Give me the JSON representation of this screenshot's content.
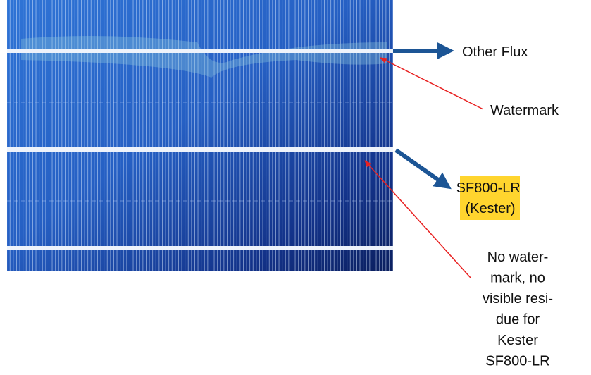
{
  "labels": {
    "other_flux": "Other Flux",
    "watermark": "Watermark",
    "kester": [
      "SF800-LR",
      "(Kester)"
    ],
    "note": [
      "No water-",
      "mark, no",
      "visible resi-",
      "due for",
      "Kester",
      "SF800-LR"
    ]
  }
}
